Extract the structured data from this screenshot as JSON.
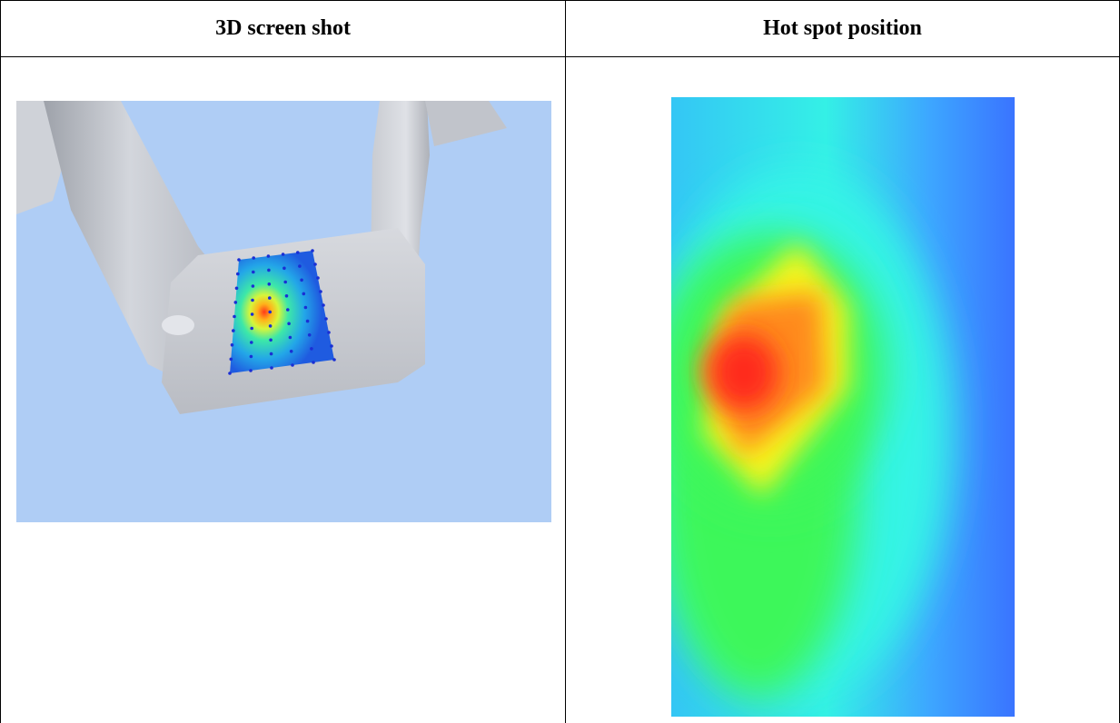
{
  "table": {
    "columns": [
      {
        "header": "3D screen shot"
      },
      {
        "header": "Hot spot position"
      }
    ]
  },
  "images": {
    "screenshot_3d": {
      "depicts": "3d-model-render",
      "background_color": "#afcdf5",
      "model_color": "#c9ccd3",
      "sensor_point_color": "#1a2fd4"
    },
    "hot_spot_map": {
      "depicts": "heat-map",
      "colors": {
        "hot": "#ff2a1a",
        "warm": "#ff8a1a",
        "yellow": "#f7f51e",
        "green": "#3cf75a",
        "cyan": "#34f4e6",
        "blue": "#3a7cff"
      }
    }
  }
}
